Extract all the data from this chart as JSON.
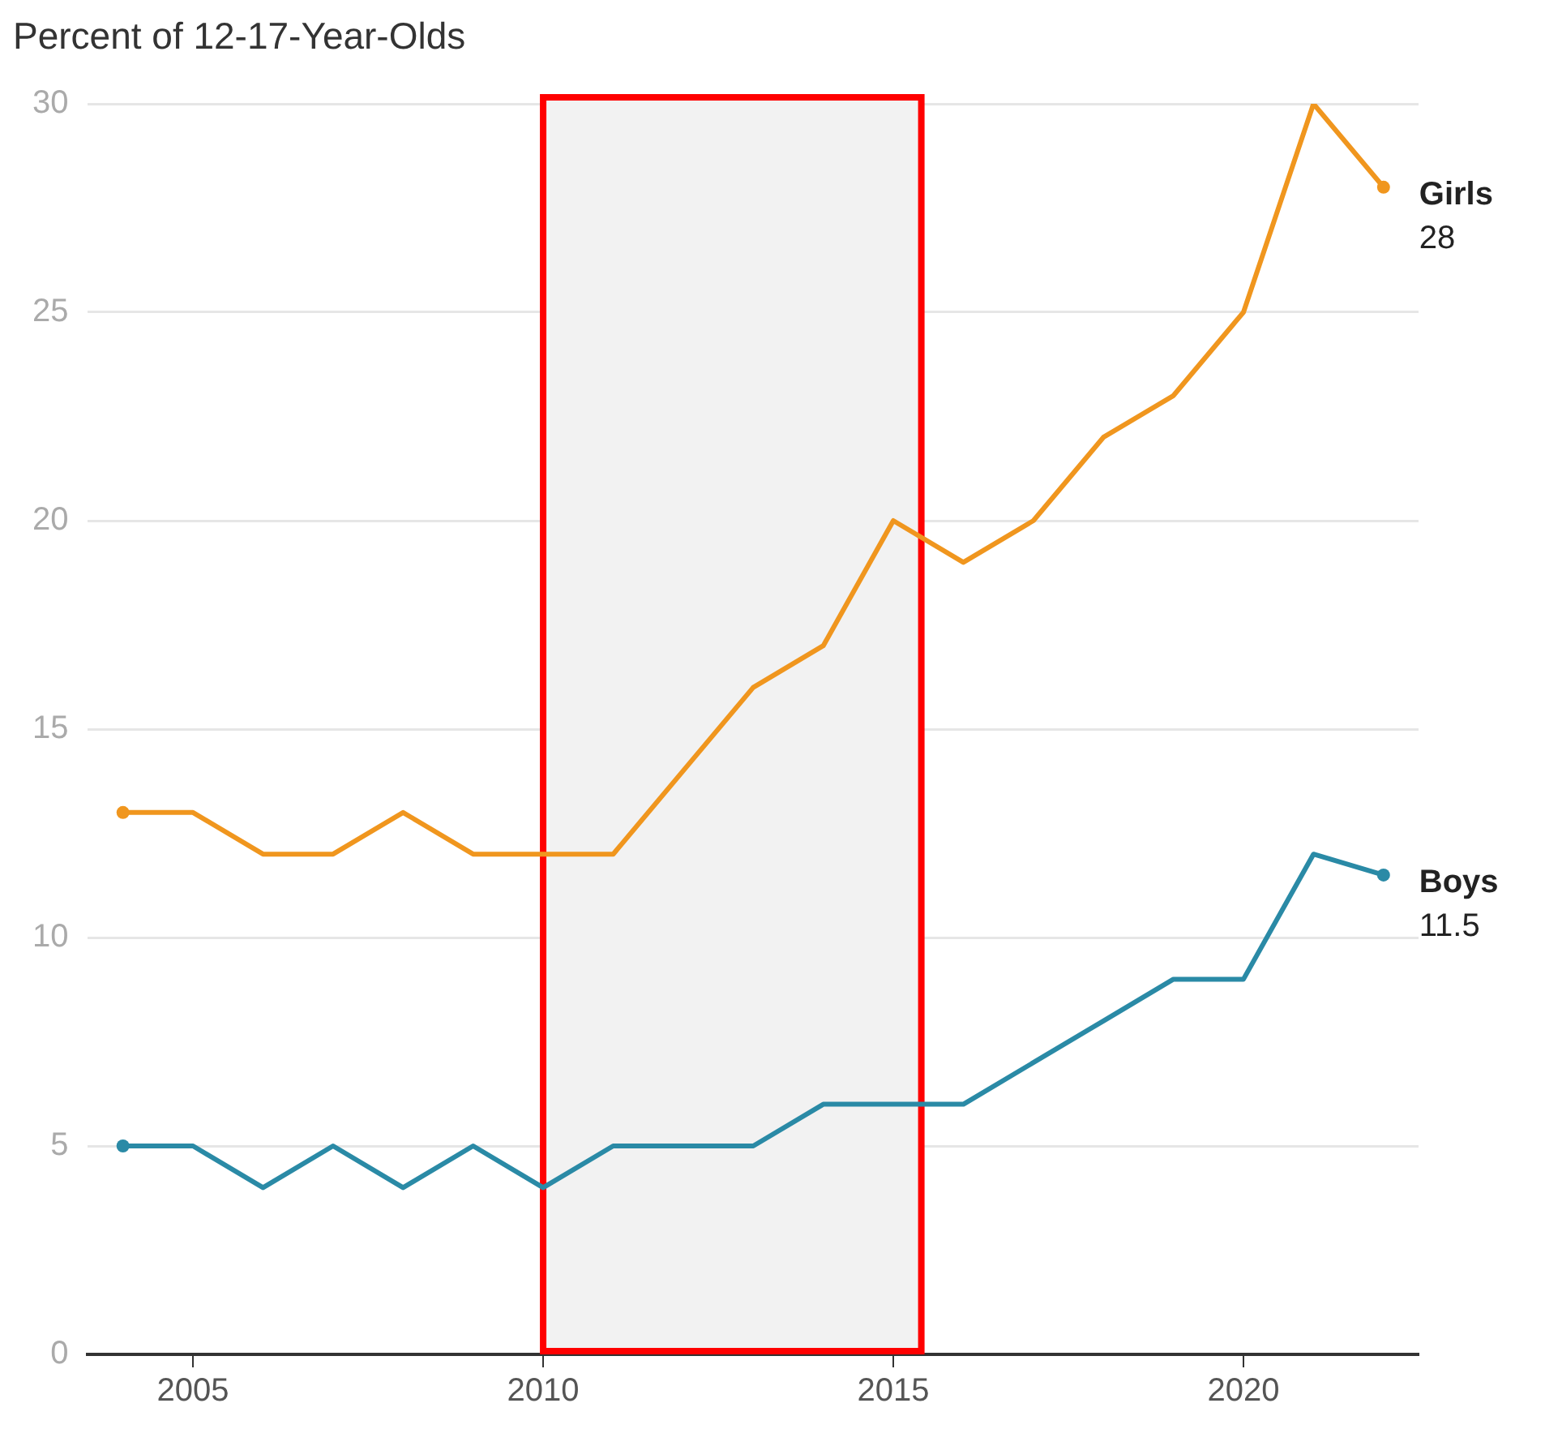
{
  "chart_data": {
    "type": "line",
    "ylabel": "Percent of 12-17-Year-Olds",
    "x": [
      2004,
      2005,
      2006,
      2007,
      2008,
      2009,
      2010,
      2011,
      2012,
      2013,
      2014,
      2015,
      2016,
      2017,
      2018,
      2019,
      2020,
      2021,
      2022
    ],
    "series": [
      {
        "name": "Girls",
        "color": "#f0961e",
        "values": [
          13,
          13,
          12,
          12,
          13,
          12,
          12,
          12,
          14,
          16,
          17,
          20,
          19,
          20,
          22,
          23,
          25,
          30,
          28
        ],
        "value_labels": [
          null,
          null,
          null,
          null,
          null,
          null,
          null,
          null,
          null,
          null,
          null,
          null,
          null,
          null,
          null,
          null,
          null,
          null,
          "28"
        ]
      },
      {
        "name": "Boys",
        "color": "#2a8aa6",
        "values": [
          5,
          5,
          4,
          5,
          4,
          5,
          4,
          5,
          5,
          5,
          6,
          6,
          6,
          7,
          8,
          9,
          9,
          12,
          11.5
        ],
        "value_labels": [
          null,
          null,
          null,
          null,
          null,
          null,
          null,
          null,
          null,
          null,
          null,
          null,
          null,
          null,
          null,
          null,
          null,
          null,
          "11.5"
        ]
      }
    ],
    "xlim": [
      2003.5,
      2022.5
    ],
    "xticks": [
      2005,
      2010,
      2015,
      2020
    ],
    "ylim": [
      0,
      30
    ],
    "yticks": [
      0,
      5,
      10,
      15,
      20,
      25,
      30
    ],
    "grid": "y",
    "legend": false,
    "line_style": "solid",
    "bands": [
      {
        "axis": "x",
        "from": 2010,
        "to": 2015.4,
        "color": "#f2f2f2"
      }
    ]
  }
}
